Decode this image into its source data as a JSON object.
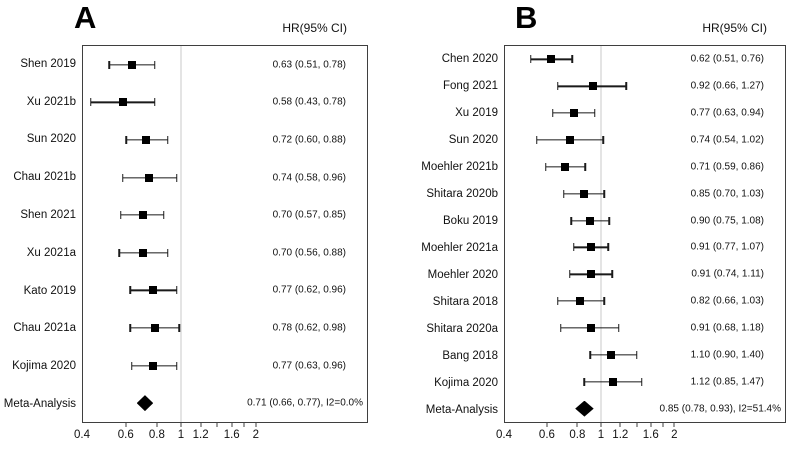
{
  "figure": {
    "description": "Two-panel forest plot of hazard ratios with 95% confidence intervals"
  },
  "chart_data": [
    {
      "type": "scatter",
      "subtype": "forest-plot",
      "panel": "A",
      "value_column_header": "HR(95% CI)",
      "x_scale": "log",
      "reference_line": 1,
      "x_range_box": [
        0.4,
        5.65
      ],
      "x_ticks": [
        {
          "v": 0.4,
          "label": "0.4",
          "tick": false
        },
        {
          "v": 0.6,
          "label": "0.6",
          "tick": true
        },
        {
          "v": 0.8,
          "label": "0.8",
          "tick": true
        },
        {
          "v": 1,
          "label": "1",
          "tick": true
        },
        {
          "v": 1.2,
          "label": "1.2",
          "tick": true
        },
        {
          "v": 1.4,
          "label": "",
          "tick": true
        },
        {
          "v": 1.6,
          "label": "1.6",
          "tick": true
        },
        {
          "v": 1.8,
          "label": "",
          "tick": true
        },
        {
          "v": 2,
          "label": "2",
          "tick": true
        }
      ],
      "studies": [
        {
          "label": "Shen 2019",
          "hr": 0.63,
          "lo": 0.51,
          "hi": 0.78,
          "text": "0.63 (0.51, 0.78)"
        },
        {
          "label": "Xu 2021b",
          "hr": 0.58,
          "lo": 0.43,
          "hi": 0.78,
          "text": "0.58 (0.43, 0.78)"
        },
        {
          "label": "Sun 2020",
          "hr": 0.72,
          "lo": 0.6,
          "hi": 0.88,
          "text": "0.72 (0.60, 0.88)"
        },
        {
          "label": "Chau 2021b",
          "hr": 0.74,
          "lo": 0.58,
          "hi": 0.96,
          "text": "0.74 (0.58, 0.96)"
        },
        {
          "label": "Shen 2021",
          "hr": 0.7,
          "lo": 0.57,
          "hi": 0.85,
          "text": "0.70 (0.57, 0.85)"
        },
        {
          "label": "Xu 2021a",
          "hr": 0.7,
          "lo": 0.56,
          "hi": 0.88,
          "text": "0.70 (0.56, 0.88)"
        },
        {
          "label": "Kato 2019",
          "hr": 0.77,
          "lo": 0.62,
          "hi": 0.96,
          "text": "0.77 (0.62, 0.96)"
        },
        {
          "label": "Chau 2021a",
          "hr": 0.78,
          "lo": 0.62,
          "hi": 0.98,
          "text": "0.78 (0.62, 0.98)"
        },
        {
          "label": "Kojima 2020",
          "hr": 0.77,
          "lo": 0.63,
          "hi": 0.96,
          "text": "0.77 (0.63, 0.96)"
        }
      ],
      "meta": {
        "label": "Meta-Analysis",
        "hr": 0.71,
        "lo": 0.66,
        "hi": 0.77,
        "text": "0.71 (0.66, 0.77), I2=0.0%"
      }
    },
    {
      "type": "scatter",
      "subtype": "forest-plot",
      "panel": "B",
      "value_column_header": "HR(95% CI)",
      "x_scale": "log",
      "reference_line": 1,
      "x_range_box": [
        0.4,
        5.74
      ],
      "x_ticks": [
        {
          "v": 0.4,
          "label": "0.4",
          "tick": false
        },
        {
          "v": 0.6,
          "label": "0.6",
          "tick": true
        },
        {
          "v": 0.8,
          "label": "0.8",
          "tick": true
        },
        {
          "v": 1,
          "label": "1",
          "tick": true
        },
        {
          "v": 1.2,
          "label": "1.2",
          "tick": true
        },
        {
          "v": 1.4,
          "label": "",
          "tick": true
        },
        {
          "v": 1.6,
          "label": "1.6",
          "tick": true
        },
        {
          "v": 1.8,
          "label": "",
          "tick": true
        },
        {
          "v": 2,
          "label": "2",
          "tick": true
        }
      ],
      "studies": [
        {
          "label": "Chen 2020",
          "hr": 0.62,
          "lo": 0.51,
          "hi": 0.76,
          "text": "0.62 (0.51, 0.76)"
        },
        {
          "label": "Fong 2021",
          "hr": 0.92,
          "lo": 0.66,
          "hi": 1.27,
          "text": "0.92 (0.66, 1.27)"
        },
        {
          "label": "Xu 2019",
          "hr": 0.77,
          "lo": 0.63,
          "hi": 0.94,
          "text": "0.77 (0.63, 0.94)"
        },
        {
          "label": "Sun 2020",
          "hr": 0.74,
          "lo": 0.54,
          "hi": 1.02,
          "text": "0.74 (0.54, 1.02)"
        },
        {
          "label": "Moehler 2021b",
          "hr": 0.71,
          "lo": 0.59,
          "hi": 0.86,
          "text": "0.71 (0.59, 0.86)"
        },
        {
          "label": "Shitara 2020b",
          "hr": 0.85,
          "lo": 0.7,
          "hi": 1.03,
          "text": "0.85 (0.70, 1.03)"
        },
        {
          "label": "Boku 2019",
          "hr": 0.9,
          "lo": 0.75,
          "hi": 1.08,
          "text": "0.90 (0.75, 1.08)"
        },
        {
          "label": "Moehler 2021a",
          "hr": 0.91,
          "lo": 0.77,
          "hi": 1.07,
          "text": "0.91 (0.77, 1.07)"
        },
        {
          "label": "Moehler 2020",
          "hr": 0.91,
          "lo": 0.74,
          "hi": 1.11,
          "text": "0.91 (0.74, 1.11)"
        },
        {
          "label": "Shitara 2018",
          "hr": 0.82,
          "lo": 0.66,
          "hi": 1.03,
          "text": "0.82 (0.66, 1.03)"
        },
        {
          "label": "Shitara 2020a",
          "hr": 0.91,
          "lo": 0.68,
          "hi": 1.18,
          "text": "0.91 (0.68, 1.18)"
        },
        {
          "label": "Bang 2018",
          "hr": 1.1,
          "lo": 0.9,
          "hi": 1.4,
          "text": "1.10 (0.90, 1.40)"
        },
        {
          "label": "Kojima 2020",
          "hr": 1.12,
          "lo": 0.85,
          "hi": 1.47,
          "text": "1.12 (0.85, 1.47)"
        }
      ],
      "meta": {
        "label": "Meta-Analysis",
        "hr": 0.85,
        "lo": 0.78,
        "hi": 0.93,
        "text": "0.85 (0.78, 0.93), I2=51.4%"
      }
    }
  ]
}
